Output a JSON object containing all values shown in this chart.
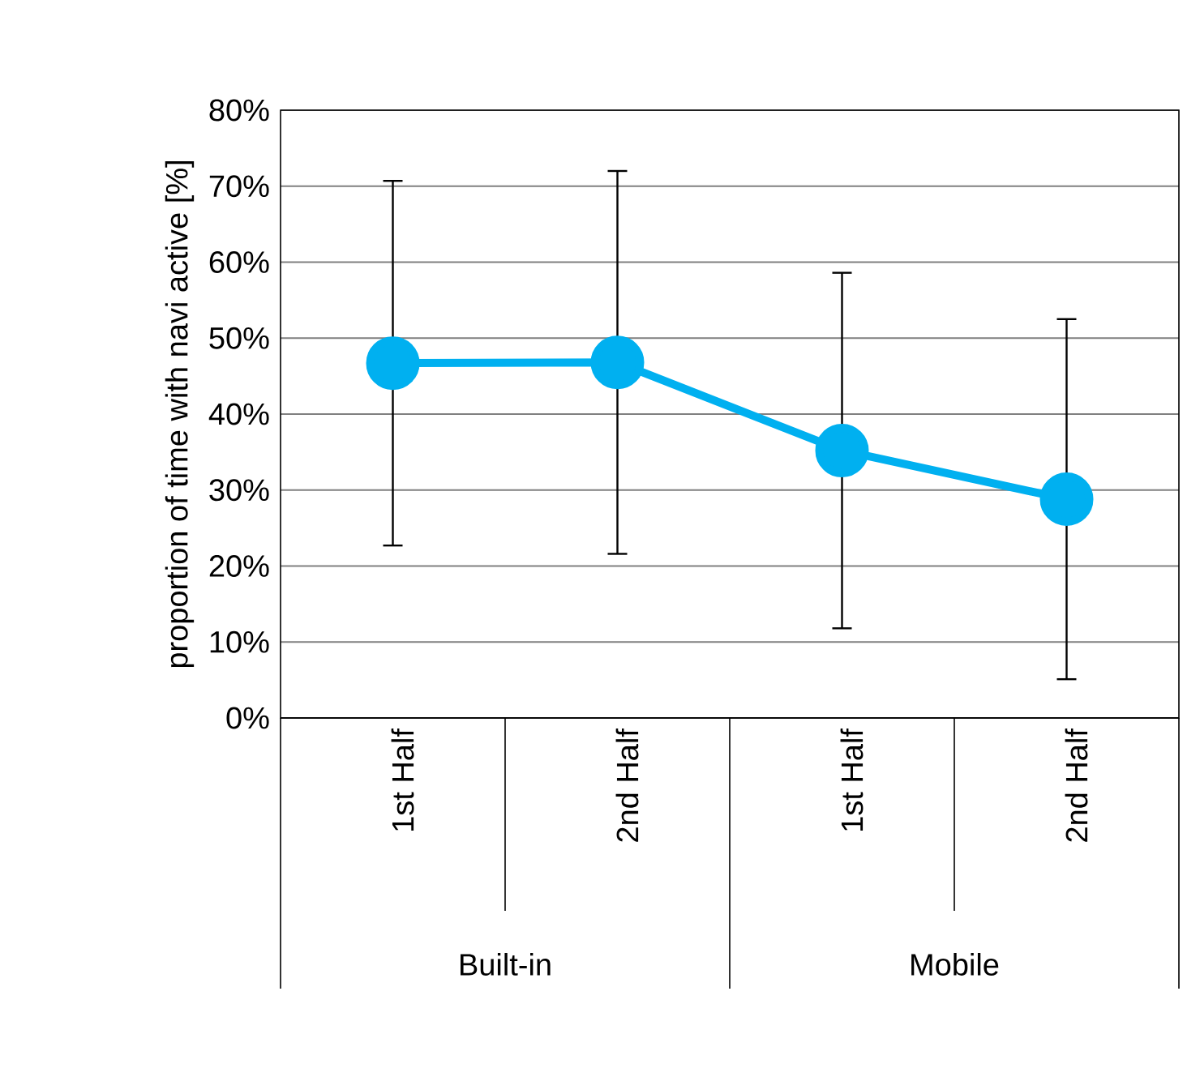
{
  "chart_data": {
    "type": "line",
    "ylabel": "proportion of time with navi active  [%]",
    "categories": [
      "1st Half",
      "2nd Half",
      "1st Half",
      "2nd Half"
    ],
    "values": [
      46.7,
      46.8,
      35.2,
      28.8
    ],
    "errors": [
      24.0,
      25.2,
      23.4,
      23.7
    ],
    "color": "#00b0f0",
    "marker": "circle",
    "line_style": "solid",
    "grid": "y",
    "ylim": [
      0,
      80
    ],
    "yticks": [
      {
        "value": 0,
        "label": "0%"
      },
      {
        "value": 10,
        "label": "10%"
      },
      {
        "value": 20,
        "label": "20%"
      },
      {
        "value": 30,
        "label": "30%"
      },
      {
        "value": 40,
        "label": "40%"
      },
      {
        "value": 50,
        "label": "50%"
      },
      {
        "value": 60,
        "label": "60%"
      },
      {
        "value": 70,
        "label": "70%"
      },
      {
        "value": 80,
        "label": "80%"
      }
    ],
    "annotations": [
      "Built-in",
      "Mobile"
    ]
  }
}
